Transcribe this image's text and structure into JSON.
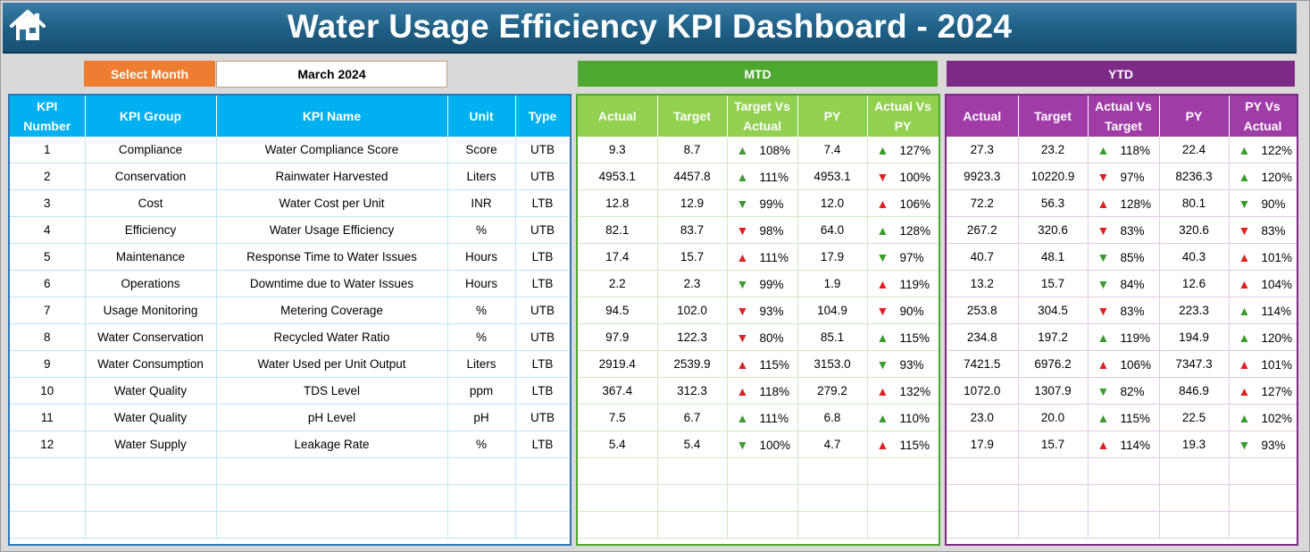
{
  "title": "Water Usage Efficiency KPI Dashboard - 2024",
  "selector": {
    "label": "Select Month",
    "value": "March 2024"
  },
  "section_mtd": "MTD",
  "section_ytd": "YTD",
  "colors": {
    "title_bar": "#1f5f86",
    "select_label": "#ed7d31",
    "mtd": "#4ea72e",
    "ytd": "#7d2a86",
    "kpi_header": "#00b0f0",
    "arrow_good": "#3a9b2e",
    "arrow_bad": "#e02020"
  },
  "kpi_headers": [
    "KPI Number",
    "KPI Group",
    "KPI Name",
    "Unit",
    "Type"
  ],
  "mtd_headers": [
    "Actual",
    "Target",
    "Target Vs Actual",
    "PY",
    "Actual Vs PY"
  ],
  "ytd_headers": [
    "Actual",
    "Target",
    "Actual Vs Target",
    "PY",
    "PY Vs Actual"
  ],
  "rows": [
    {
      "num": "1",
      "group": "Compliance",
      "name": "Water Compliance Score",
      "unit": "Score",
      "type": "UTB",
      "mtd": {
        "actual": "9.3",
        "target": "8.7",
        "tva": "108%",
        "tva_icon": "up-green",
        "py": "7.4",
        "avp": "127%",
        "avp_icon": "up-green"
      },
      "ytd": {
        "actual": "27.3",
        "target": "23.2",
        "avt": "118%",
        "avt_icon": "up-green",
        "py": "22.4",
        "pva": "122%",
        "pva_icon": "up-green"
      }
    },
    {
      "num": "2",
      "group": "Conservation",
      "name": "Rainwater Harvested",
      "unit": "Liters",
      "type": "UTB",
      "mtd": {
        "actual": "4953.1",
        "target": "4457.8",
        "tva": "111%",
        "tva_icon": "up-green",
        "py": "4953.1",
        "avp": "100%",
        "avp_icon": "down-red"
      },
      "ytd": {
        "actual": "9923.3",
        "target": "10220.9",
        "avt": "97%",
        "avt_icon": "down-red",
        "py": "8236.3",
        "pva": "120%",
        "pva_icon": "up-green"
      }
    },
    {
      "num": "3",
      "group": "Cost",
      "name": "Water Cost per Unit",
      "unit": "INR",
      "type": "LTB",
      "mtd": {
        "actual": "12.8",
        "target": "12.9",
        "tva": "99%",
        "tva_icon": "down-green",
        "py": "12.0",
        "avp": "106%",
        "avp_icon": "up-red"
      },
      "ytd": {
        "actual": "72.2",
        "target": "56.3",
        "avt": "128%",
        "avt_icon": "up-red",
        "py": "80.1",
        "pva": "90%",
        "pva_icon": "down-green"
      }
    },
    {
      "num": "4",
      "group": "Efficiency",
      "name": "Water Usage Efficiency",
      "unit": "%",
      "type": "UTB",
      "mtd": {
        "actual": "82.1",
        "target": "83.7",
        "tva": "98%",
        "tva_icon": "down-red",
        "py": "64.0",
        "avp": "128%",
        "avp_icon": "up-green"
      },
      "ytd": {
        "actual": "267.2",
        "target": "320.6",
        "avt": "83%",
        "avt_icon": "down-red",
        "py": "320.6",
        "pva": "83%",
        "pva_icon": "down-red"
      }
    },
    {
      "num": "5",
      "group": "Maintenance",
      "name": "Response Time to Water Issues",
      "unit": "Hours",
      "type": "LTB",
      "mtd": {
        "actual": "17.4",
        "target": "15.7",
        "tva": "111%",
        "tva_icon": "up-red",
        "py": "17.9",
        "avp": "97%",
        "avp_icon": "down-green"
      },
      "ytd": {
        "actual": "40.7",
        "target": "48.1",
        "avt": "85%",
        "avt_icon": "down-green",
        "py": "40.3",
        "pva": "101%",
        "pva_icon": "up-red"
      }
    },
    {
      "num": "6",
      "group": "Operations",
      "name": "Downtime due to Water Issues",
      "unit": "Hours",
      "type": "LTB",
      "mtd": {
        "actual": "2.2",
        "target": "2.3",
        "tva": "99%",
        "tva_icon": "down-green",
        "py": "1.9",
        "avp": "119%",
        "avp_icon": "up-red"
      },
      "ytd": {
        "actual": "13.2",
        "target": "15.7",
        "avt": "84%",
        "avt_icon": "down-green",
        "py": "12.6",
        "pva": "104%",
        "pva_icon": "up-red"
      }
    },
    {
      "num": "7",
      "group": "Usage Monitoring",
      "name": "Metering Coverage",
      "unit": "%",
      "type": "UTB",
      "mtd": {
        "actual": "94.5",
        "target": "102.0",
        "tva": "93%",
        "tva_icon": "down-red",
        "py": "104.9",
        "avp": "90%",
        "avp_icon": "down-red"
      },
      "ytd": {
        "actual": "253.8",
        "target": "304.5",
        "avt": "83%",
        "avt_icon": "down-red",
        "py": "223.3",
        "pva": "114%",
        "pva_icon": "up-green"
      }
    },
    {
      "num": "8",
      "group": "Water Conservation",
      "name": "Recycled Water Ratio",
      "unit": "%",
      "type": "UTB",
      "mtd": {
        "actual": "97.9",
        "target": "122.3",
        "tva": "80%",
        "tva_icon": "down-red",
        "py": "85.1",
        "avp": "115%",
        "avp_icon": "up-green"
      },
      "ytd": {
        "actual": "234.8",
        "target": "197.2",
        "avt": "119%",
        "avt_icon": "up-green",
        "py": "194.9",
        "pva": "120%",
        "pva_icon": "up-green"
      }
    },
    {
      "num": "9",
      "group": "Water Consumption",
      "name": "Water Used per Unit Output",
      "unit": "Liters",
      "type": "LTB",
      "mtd": {
        "actual": "2919.4",
        "target": "2539.9",
        "tva": "115%",
        "tva_icon": "up-red",
        "py": "3153.0",
        "avp": "93%",
        "avp_icon": "down-green"
      },
      "ytd": {
        "actual": "7421.5",
        "target": "6976.2",
        "avt": "106%",
        "avt_icon": "up-red",
        "py": "7347.3",
        "pva": "101%",
        "pva_icon": "up-red"
      }
    },
    {
      "num": "10",
      "group": "Water Quality",
      "name": "TDS Level",
      "unit": "ppm",
      "type": "LTB",
      "mtd": {
        "actual": "367.4",
        "target": "312.3",
        "tva": "118%",
        "tva_icon": "up-red",
        "py": "279.2",
        "avp": "132%",
        "avp_icon": "up-red"
      },
      "ytd": {
        "actual": "1072.0",
        "target": "1307.9",
        "avt": "82%",
        "avt_icon": "down-green",
        "py": "846.9",
        "pva": "127%",
        "pva_icon": "up-red"
      }
    },
    {
      "num": "11",
      "group": "Water Quality",
      "name": "pH Level",
      "unit": "pH",
      "type": "UTB",
      "mtd": {
        "actual": "7.5",
        "target": "6.7",
        "tva": "111%",
        "tva_icon": "up-green",
        "py": "6.8",
        "avp": "110%",
        "avp_icon": "up-green"
      },
      "ytd": {
        "actual": "23.0",
        "target": "20.0",
        "avt": "115%",
        "avt_icon": "up-green",
        "py": "22.5",
        "pva": "102%",
        "pva_icon": "up-green"
      }
    },
    {
      "num": "12",
      "group": "Water Supply",
      "name": "Leakage Rate",
      "unit": "%",
      "type": "LTB",
      "mtd": {
        "actual": "5.4",
        "target": "5.4",
        "tva": "100%",
        "tva_icon": "down-green",
        "py": "4.7",
        "avp": "115%",
        "avp_icon": "up-red"
      },
      "ytd": {
        "actual": "17.9",
        "target": "15.7",
        "avt": "114%",
        "avt_icon": "up-red",
        "py": "19.3",
        "pva": "93%",
        "pva_icon": "down-green"
      }
    }
  ]
}
